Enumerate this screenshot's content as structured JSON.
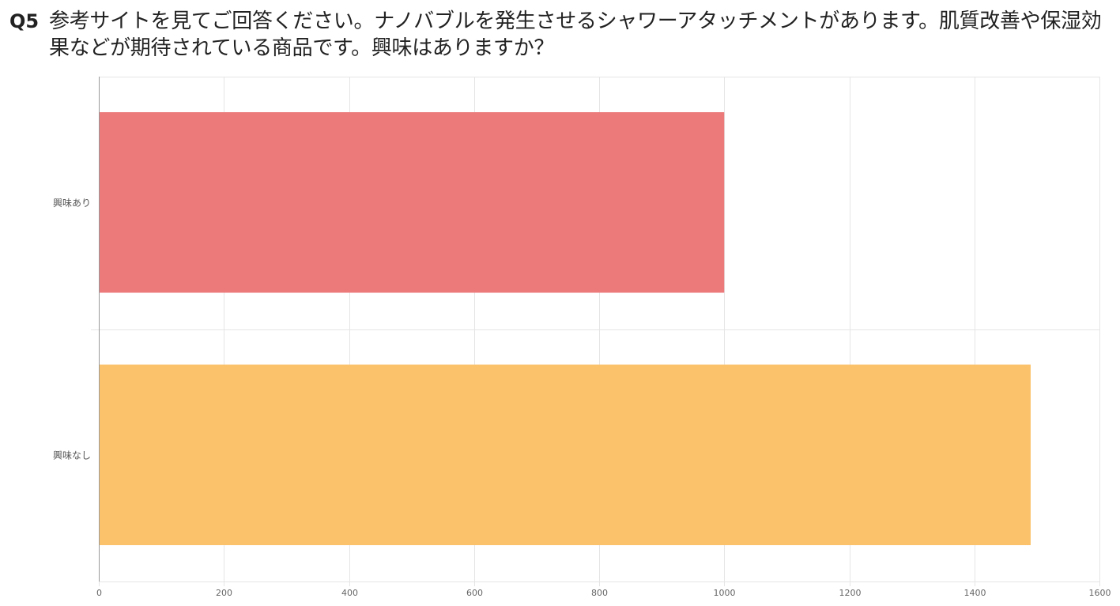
{
  "question": {
    "number": "Q5",
    "text": "参考サイトを見てご回答ください。ナノバブルを発生させるシャワーアタッチメントがあります。肌質改善や保湿効果などが期待されている商品です。興味はありますか？"
  },
  "colors": {
    "bar_yes": "#ec7a7b",
    "bar_no": "#fbc26b",
    "grid": "#e5e5e5",
    "axis": "#999999"
  },
  "chart_data": {
    "type": "bar",
    "orientation": "horizontal",
    "categories": [
      "興味あり",
      "興味なし"
    ],
    "values": [
      1000,
      1490
    ],
    "xlim": [
      0,
      1600
    ],
    "xticks": [
      0,
      200,
      400,
      600,
      800,
      1000,
      1200,
      1400,
      1600
    ],
    "grid": true,
    "title": "",
    "xlabel": "",
    "ylabel": ""
  }
}
